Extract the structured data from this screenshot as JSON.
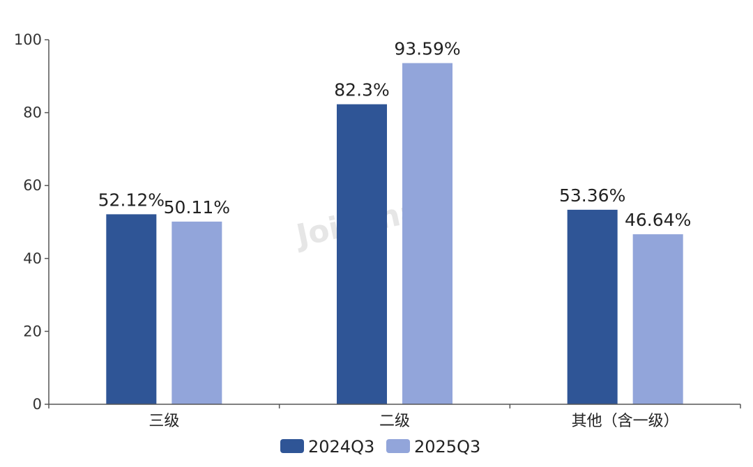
{
  "chart_data": {
    "type": "bar",
    "categories": [
      "三级",
      "二级",
      "其他（含一级）"
    ],
    "series": [
      {
        "name": "2024Q3",
        "values": [
          52.12,
          82.3,
          53.36
        ],
        "labels": [
          "52.12%",
          "82.3%",
          "53.36%"
        ],
        "color": "#2f5596"
      },
      {
        "name": "2025Q3",
        "values": [
          50.11,
          93.59,
          46.64
        ],
        "labels": [
          "50.11%",
          "93.59%",
          "46.64%"
        ],
        "color": "#92a5da"
      }
    ],
    "ylim": [
      0,
      100
    ],
    "yticks": [
      "0",
      "20",
      "40",
      "60",
      "80",
      "100"
    ],
    "grid": false,
    "legend": "bottom",
    "watermark": "Joinchain"
  }
}
